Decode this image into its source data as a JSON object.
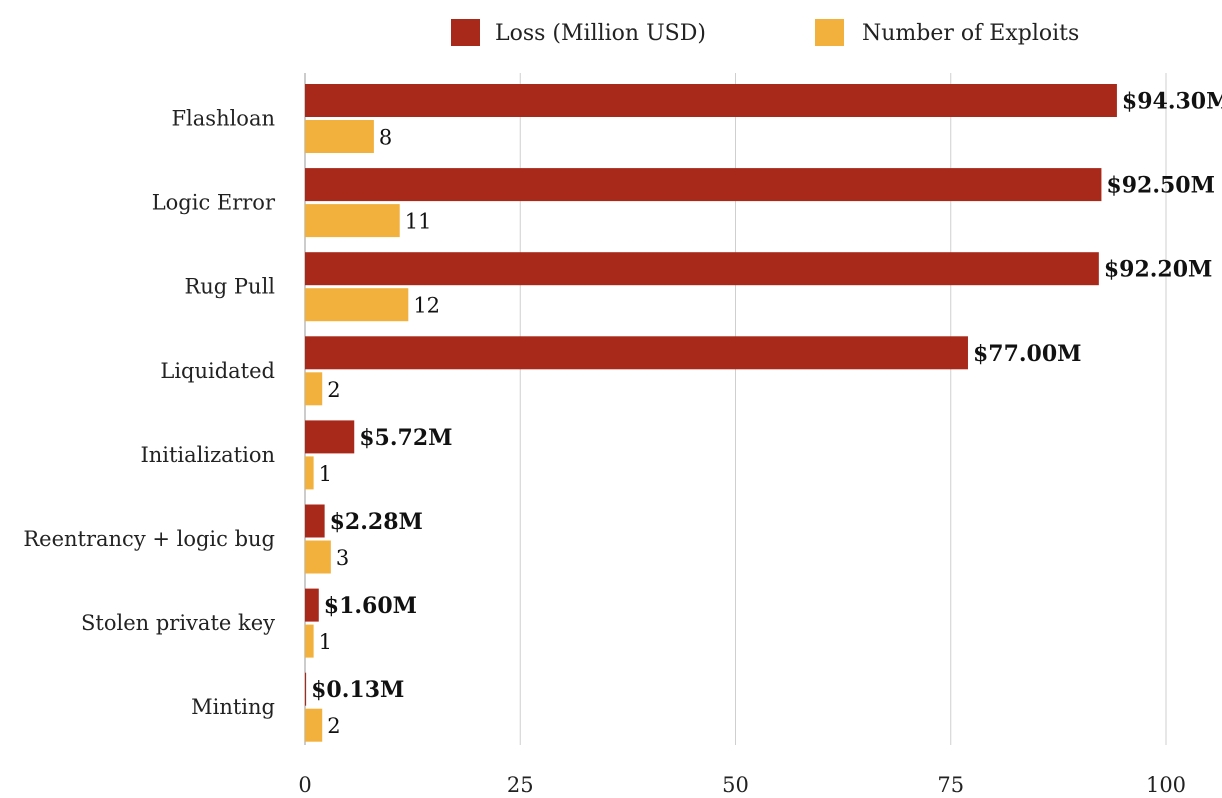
{
  "chart_data": {
    "type": "bar",
    "orientation": "horizontal",
    "title": "",
    "xlabel": "",
    "ylabel": "",
    "xlim": [
      0,
      100
    ],
    "ticks": [
      0,
      25,
      50,
      75,
      100
    ],
    "tick_labels": [
      "0",
      "25",
      "50",
      "75",
      "100"
    ],
    "grid": true,
    "legend_position": "top-center",
    "categories": [
      "Flashloan",
      "Logic Error",
      "Rug Pull",
      "Liquidated",
      "Initialization",
      "Reentrancy + logic bug",
      "Stolen private key",
      "Minting"
    ],
    "series": [
      {
        "name": "Loss (Million USD)",
        "color": "#a8291a",
        "values": [
          94.3,
          92.5,
          92.2,
          77.0,
          5.72,
          2.28,
          1.6,
          0.13
        ],
        "labels": [
          "$94.30M",
          "$92.50M",
          "$92.20M",
          "$77.00M",
          "$5.72M",
          "$2.28M",
          "$1.60M",
          "$0.13M"
        ]
      },
      {
        "name": "Number of Exploits",
        "color": "#f2b03d",
        "values": [
          8,
          11,
          12,
          2,
          1,
          3,
          1,
          2
        ],
        "labels": [
          "8",
          "11",
          "12",
          "2",
          "1",
          "3",
          "1",
          "2"
        ]
      }
    ]
  }
}
